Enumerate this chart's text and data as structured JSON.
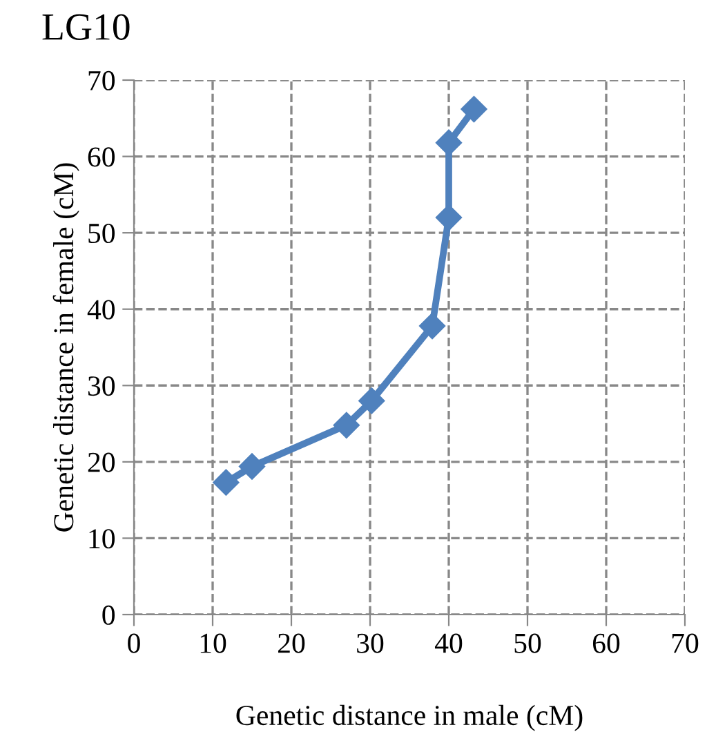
{
  "chart_data": {
    "type": "line",
    "title": "LG10",
    "xlabel": "Genetic distance in male (cM)",
    "ylabel": "Genetic distance in female (cM)",
    "x": [
      11.7,
      15,
      27,
      30.2,
      37.9,
      40,
      40,
      43.2
    ],
    "series": [
      {
        "color": "#4f81bd",
        "values": [
          17.3,
          19.4,
          24.8,
          28,
          37.8,
          52,
          61.8,
          66.2
        ]
      }
    ],
    "xlim": [
      0,
      70
    ],
    "ylim": [
      0,
      70
    ],
    "xticks": [
      0,
      10,
      20,
      30,
      40,
      50,
      60,
      70
    ],
    "yticks": [
      0,
      10,
      20,
      30,
      40,
      50,
      60,
      70
    ],
    "grid": true,
    "marker": "diamond",
    "line_style": "solid",
    "legend": false
  }
}
